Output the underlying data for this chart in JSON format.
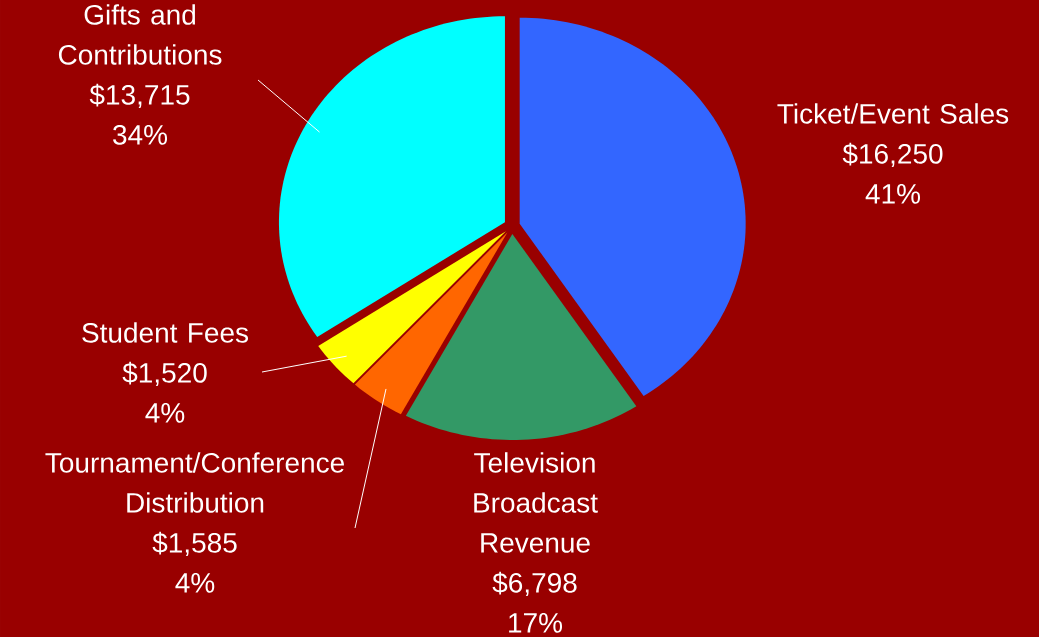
{
  "chart_data": {
    "type": "pie",
    "categories": [
      "Ticket/Event Sales",
      "Television Broadcast Revenue",
      "Tournament/Conference Distribution",
      "Student Fees",
      "Gifts and Contributions"
    ],
    "values": [
      16250,
      6798,
      1585,
      1520,
      13715
    ],
    "colors": [
      "#3366ff",
      "#339966",
      "#ff6600",
      "#ffff00",
      "#00ffff"
    ],
    "value_labels": [
      "$16,250",
      "$6,798",
      "$1,585",
      "$1,520",
      "$13,715"
    ],
    "annotations": [
      "41%",
      "17%",
      "4%",
      "4%",
      "34%"
    ]
  }
}
